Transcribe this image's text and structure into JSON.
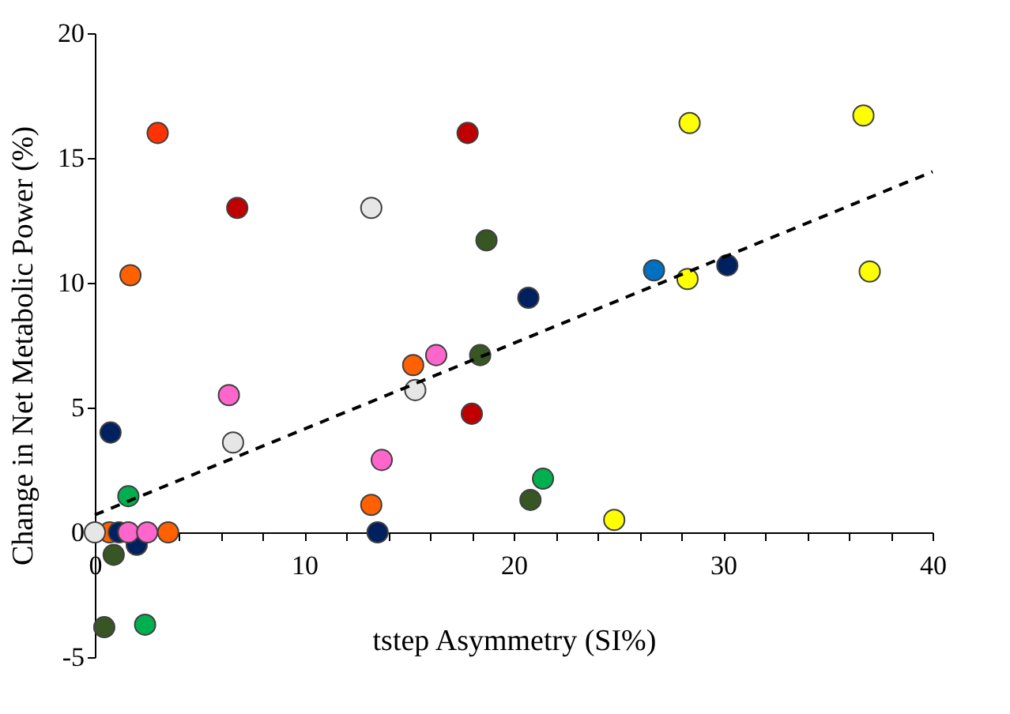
{
  "chart_data": {
    "type": "scatter",
    "xlabel": "tstep Asymmetry (SI%)",
    "ylabel": "Change in Net Metabolic Power (%)",
    "xlim": [
      0,
      40
    ],
    "ylim": [
      -5,
      20
    ],
    "xticks": [
      0,
      {
        "value": 2,
        "label": null
      },
      {
        "value": 4,
        "label": null
      },
      {
        "value": 6,
        "label": null
      },
      {
        "value": 8,
        "label": null
      },
      10,
      {
        "value": 12,
        "label": null
      },
      {
        "value": 14,
        "label": null
      },
      {
        "value": 16,
        "label": null
      },
      {
        "value": 18,
        "label": null
      },
      20,
      {
        "value": 22,
        "label": null
      },
      {
        "value": 24,
        "label": null
      },
      {
        "value": 26,
        "label": null
      },
      {
        "value": 28,
        "label": null
      },
      30,
      {
        "value": 32,
        "label": null
      },
      {
        "value": 34,
        "label": null
      },
      {
        "value": 36,
        "label": null
      },
      {
        "value": 38,
        "label": null
      },
      40
    ],
    "yticks": [
      -5,
      0,
      5,
      10,
      15,
      20
    ],
    "grid": false,
    "legend": false,
    "marker": "circle",
    "series": [
      {
        "color": "#ff3300",
        "x": [
          3.0
        ],
        "values": [
          16.0
        ]
      },
      {
        "color": "#ff6000",
        "x": [
          1.7,
          13.2,
          15.2,
          3.5,
          0.7
        ],
        "values": [
          10.3,
          1.1,
          6.7,
          0,
          0
        ]
      },
      {
        "color": "#c00000",
        "x": [
          6.8,
          17.8,
          18.0
        ],
        "values": [
          13.0,
          16.0,
          4.75
        ]
      },
      {
        "color": "#e6e6e6",
        "x": [
          13.2,
          15.3,
          6.6,
          0
        ],
        "values": [
          13.0,
          5.7,
          3.6,
          0
        ]
      },
      {
        "color": "#375623",
        "x": [
          18.7,
          18.4,
          20.8,
          0.9,
          0.45
        ],
        "values": [
          11.7,
          7.1,
          1.3,
          -0.9,
          -3.8
        ]
      },
      {
        "color": "#002060",
        "x": [
          20.7,
          30.2,
          0.75,
          13.5,
          2.0,
          1.15
        ],
        "values": [
          9.4,
          10.7,
          4.0,
          0,
          -0.5,
          0
        ]
      },
      {
        "color": "#0070c0",
        "x": [
          26.7
        ],
        "values": [
          10.5
        ]
      },
      {
        "color": "#ffff00",
        "x": [
          28.4,
          36.7,
          28.3,
          37.0,
          24.8
        ],
        "values": [
          16.4,
          16.7,
          10.15,
          10.45,
          0.5
        ]
      },
      {
        "color": "#ff66cc",
        "x": [
          16.3,
          6.4,
          13.7,
          1.6,
          2.5
        ],
        "values": [
          7.1,
          5.5,
          2.9,
          0,
          0
        ]
      },
      {
        "color": "#00b050",
        "x": [
          1.6,
          2.4,
          21.4
        ],
        "values": [
          1.45,
          -3.7,
          2.15
        ]
      },
      {
        "type": "line",
        "color": "#000000",
        "line_style": "dashed",
        "marker": "none",
        "x": [
          0,
          40
        ],
        "values": [
          0.7,
          14.45
        ]
      }
    ]
  }
}
